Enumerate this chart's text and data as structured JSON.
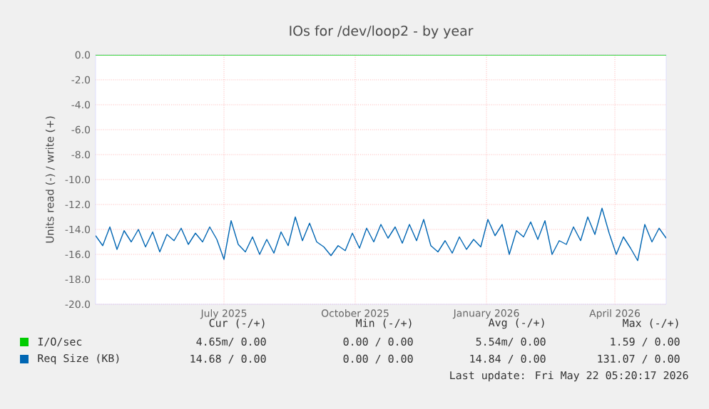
{
  "chart_data": {
    "type": "line",
    "title": "IOs for /dev/loop2 - by year",
    "ylabel": "Units read (-) / write (+)",
    "xlim": [
      "2025-04-02",
      "2026-05-07"
    ],
    "xticks": [
      {
        "value": "2025-07-01",
        "label": "July 2025"
      },
      {
        "value": "2025-10-01",
        "label": "October 2025"
      },
      {
        "value": "2026-01-01",
        "label": "January 2026"
      },
      {
        "value": "2026-04-01",
        "label": "April 2026"
      }
    ],
    "ylim": [
      -20,
      0
    ],
    "yticks": [
      {
        "value": 0,
        "label": "0.0"
      },
      {
        "value": -2,
        "label": "-2.0"
      },
      {
        "value": -4,
        "label": "-4.0"
      },
      {
        "value": -6,
        "label": "-6.0"
      },
      {
        "value": -8,
        "label": "-8.0"
      },
      {
        "value": -10,
        "label": "-10.0"
      },
      {
        "value": -12,
        "label": "-12.0"
      },
      {
        "value": -14,
        "label": "-14.0"
      },
      {
        "value": -16,
        "label": "-16.0"
      },
      {
        "value": -18,
        "label": "-18.0"
      },
      {
        "value": -20,
        "label": "-20.0"
      }
    ],
    "grid": true,
    "legend": "bottom",
    "x": [
      "2025-04-02",
      "2025-04-07",
      "2025-04-12",
      "2025-04-17",
      "2025-04-22",
      "2025-04-27",
      "2025-05-02",
      "2025-05-07",
      "2025-05-12",
      "2025-05-17",
      "2025-05-22",
      "2025-05-27",
      "2025-06-01",
      "2025-06-06",
      "2025-06-11",
      "2025-06-16",
      "2025-06-21",
      "2025-06-26",
      "2025-07-01",
      "2025-07-06",
      "2025-07-11",
      "2025-07-16",
      "2025-07-21",
      "2025-07-26",
      "2025-07-31",
      "2025-08-05",
      "2025-08-10",
      "2025-08-15",
      "2025-08-20",
      "2025-08-25",
      "2025-08-30",
      "2025-09-04",
      "2025-09-09",
      "2025-09-14",
      "2025-09-19",
      "2025-09-24",
      "2025-09-29",
      "2025-10-04",
      "2025-10-09",
      "2025-10-14",
      "2025-10-19",
      "2025-10-24",
      "2025-10-29",
      "2025-11-03",
      "2025-11-08",
      "2025-11-13",
      "2025-11-18",
      "2025-11-23",
      "2025-11-28",
      "2025-12-03",
      "2025-12-08",
      "2025-12-13",
      "2025-12-18",
      "2025-12-23",
      "2025-12-28",
      "2026-01-02",
      "2026-01-07",
      "2026-01-12",
      "2026-01-17",
      "2026-01-22",
      "2026-01-27",
      "2026-02-01",
      "2026-02-06",
      "2026-02-11",
      "2026-02-16",
      "2026-02-21",
      "2026-02-26",
      "2026-03-03",
      "2026-03-08",
      "2026-03-13",
      "2026-03-18",
      "2026-03-23",
      "2026-03-28",
      "2026-04-02",
      "2026-04-07",
      "2026-04-12",
      "2026-04-17",
      "2026-04-22",
      "2026-04-27",
      "2026-05-02",
      "2026-05-07"
    ],
    "series": [
      {
        "name": "I/O/sec",
        "color": "#00cc00",
        "x": [
          "2025-04-02",
          "2026-05-07"
        ],
        "values": [
          0,
          0
        ]
      },
      {
        "name": "Req Size (KB)",
        "color": "#0066b3",
        "values": [
          -14.5,
          -15.3,
          -13.8,
          -15.6,
          -14.1,
          -15.0,
          -14.0,
          -15.4,
          -14.2,
          -15.8,
          -14.4,
          -14.9,
          -13.9,
          -15.2,
          -14.3,
          -15.0,
          -13.8,
          -14.8,
          -16.4,
          -13.3,
          -15.2,
          -15.8,
          -14.6,
          -16.0,
          -14.8,
          -15.9,
          -14.2,
          -15.3,
          -13.0,
          -14.9,
          -13.5,
          -15.0,
          -15.4,
          -16.1,
          -15.3,
          -15.7,
          -14.3,
          -15.5,
          -13.9,
          -15.0,
          -13.6,
          -14.7,
          -13.8,
          -15.1,
          -13.6,
          -14.9,
          -13.2,
          -15.3,
          -15.8,
          -14.9,
          -15.9,
          -14.6,
          -15.6,
          -14.8,
          -15.4,
          -13.2,
          -14.5,
          -13.6,
          -16.0,
          -14.1,
          -14.6,
          -13.4,
          -14.8,
          -13.3,
          -16.0,
          -14.9,
          -15.2,
          -13.8,
          -14.9,
          -13.0,
          -14.4,
          -12.3,
          -14.3,
          -16.0,
          -14.6,
          -15.5,
          -16.5,
          -13.6,
          -15.0,
          -13.9,
          -14.7
        ]
      }
    ],
    "annotations": [
      "Cur (-/+)",
      "Min (-/+)",
      "Avg (-/+)",
      "Max (-/+)",
      "4.65m/ 0.00",
      "0.00 / 0.00",
      "5.54m/ 0.00",
      "1.59 / 0.00",
      "14.68 / 0.00",
      "0.00 / 0.00",
      "14.84 / 0.00",
      "131.07 / 0.00",
      "Last update: Fri May 22 05:20:17 2026"
    ]
  }
}
